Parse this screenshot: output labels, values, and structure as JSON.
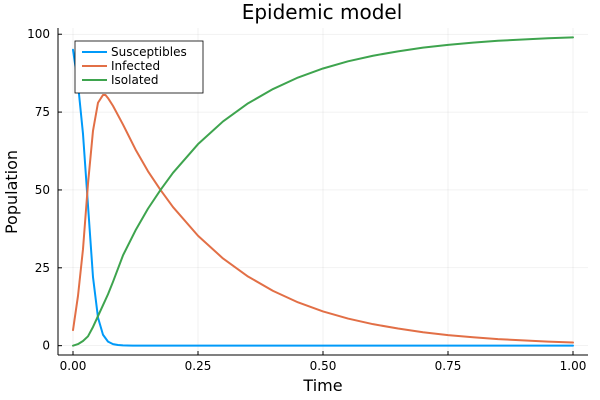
{
  "chart_data": {
    "type": "line",
    "title": "Epidemic model",
    "xlabel": "Time",
    "ylabel": "Population",
    "xlim": [
      -0.03,
      1.03
    ],
    "ylim": [
      -3,
      102
    ],
    "xticks": [
      0,
      0.25,
      0.5,
      0.75,
      1.0
    ],
    "xtick_labels": [
      "0.00",
      "0.25",
      "0.50",
      "0.75",
      "1.00"
    ],
    "yticks": [
      0,
      25,
      50,
      75,
      100
    ],
    "ytick_labels": [
      "0",
      "25",
      "50",
      "75",
      "100"
    ],
    "grid": true,
    "legend_position": "top-left",
    "series": [
      {
        "name": "Susceptibles",
        "color": "#009AF9",
        "x": [
          0,
          0.01,
          0.02,
          0.03,
          0.04,
          0.05,
          0.06,
          0.07,
          0.08,
          0.09,
          0.1,
          0.12,
          0.15,
          0.2,
          0.3,
          0.5,
          0.75,
          1.0
        ],
        "y": [
          95,
          84,
          68,
          45,
          22,
          9,
          3.5,
          1.3,
          0.5,
          0.2,
          0.1,
          0.02,
          0,
          0,
          0,
          0,
          0,
          0
        ]
      },
      {
        "name": "Infected",
        "color": "#E26F46",
        "x": [
          0,
          0.01,
          0.02,
          0.03,
          0.04,
          0.05,
          0.06,
          0.065,
          0.07,
          0.08,
          0.1,
          0.125,
          0.15,
          0.175,
          0.2,
          0.25,
          0.3,
          0.35,
          0.4,
          0.45,
          0.5,
          0.55,
          0.6,
          0.65,
          0.7,
          0.75,
          0.8,
          0.85,
          0.9,
          0.95,
          1.0
        ],
        "y": [
          5,
          16,
          31,
          52,
          69,
          78,
          80.5,
          80.5,
          79.5,
          77,
          71,
          63,
          56,
          50,
          44.5,
          35.3,
          28,
          22.2,
          17.6,
          13.9,
          11,
          8.7,
          6.9,
          5.5,
          4.3,
          3.4,
          2.7,
          2.1,
          1.7,
          1.3,
          1.0
        ]
      },
      {
        "name": "Isolated",
        "color": "#3EA44E",
        "x": [
          0,
          0.01,
          0.02,
          0.03,
          0.04,
          0.05,
          0.06,
          0.07,
          0.08,
          0.1,
          0.125,
          0.15,
          0.175,
          0.2,
          0.25,
          0.3,
          0.35,
          0.4,
          0.45,
          0.5,
          0.55,
          0.6,
          0.65,
          0.7,
          0.75,
          0.8,
          0.85,
          0.9,
          0.95,
          1.0
        ],
        "y": [
          0,
          0.5,
          1.5,
          3,
          6,
          9.5,
          13,
          16.5,
          20.5,
          29,
          37,
          44,
          50,
          55.5,
          64.7,
          72,
          77.8,
          82.4,
          86.1,
          89,
          91.3,
          93.1,
          94.5,
          95.7,
          96.6,
          97.3,
          97.9,
          98.3,
          98.7,
          99
        ]
      }
    ]
  }
}
